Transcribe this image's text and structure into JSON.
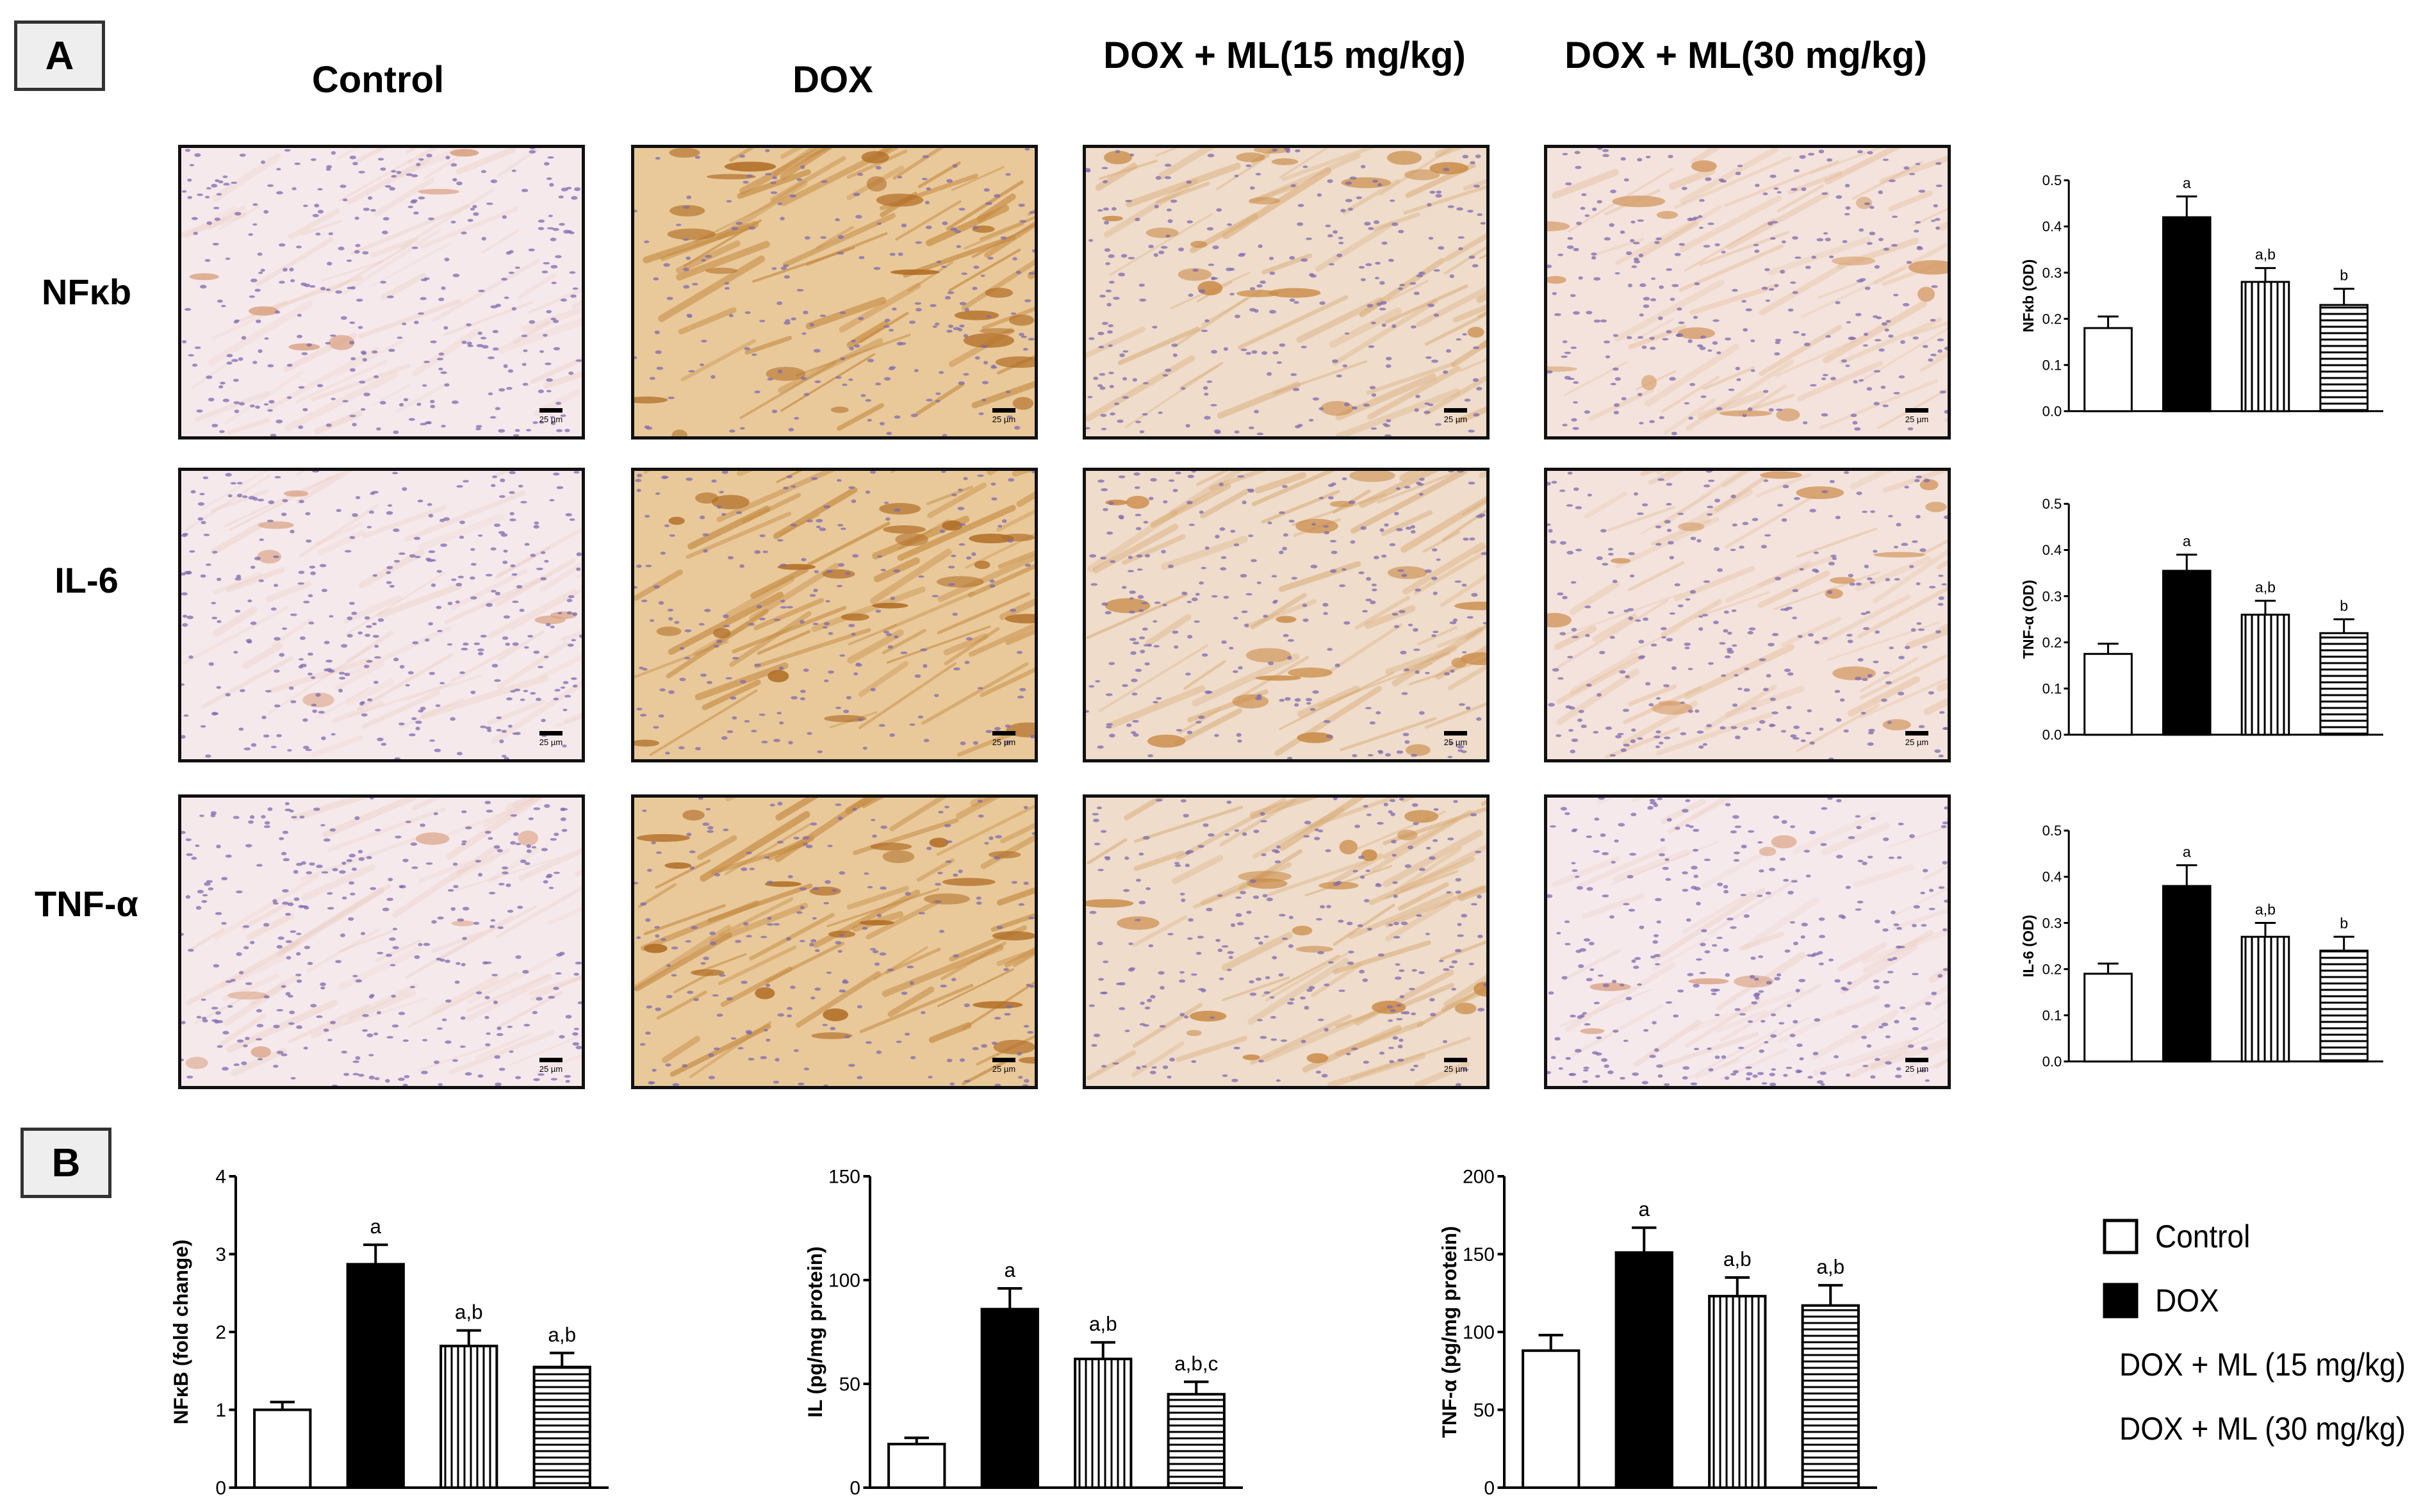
{
  "panels": {
    "a": "A",
    "b": "B"
  },
  "columns": [
    {
      "label": "Control"
    },
    {
      "label": "DOX"
    },
    {
      "label": "DOX + ML\n(15 mg/kg)"
    },
    {
      "label": "DOX + ML\n(30 mg/kg)"
    }
  ],
  "rows": [
    {
      "label": "NFκb"
    },
    {
      "label": "IL-6"
    },
    {
      "label": "TNF-α"
    }
  ],
  "scale_bar": "25 µm",
  "micrographs": [
    {
      "row": 0,
      "col": 0,
      "stain": "light"
    },
    {
      "row": 0,
      "col": 1,
      "stain": "heavy"
    },
    {
      "row": 0,
      "col": 2,
      "stain": "moderate"
    },
    {
      "row": 0,
      "col": 3,
      "stain": "mild"
    },
    {
      "row": 1,
      "col": 0,
      "stain": "light"
    },
    {
      "row": 1,
      "col": 1,
      "stain": "heavy"
    },
    {
      "row": 1,
      "col": 2,
      "stain": "moderate"
    },
    {
      "row": 1,
      "col": 3,
      "stain": "mild"
    },
    {
      "row": 2,
      "col": 0,
      "stain": "light"
    },
    {
      "row": 2,
      "col": 1,
      "stain": "heavy"
    },
    {
      "row": 2,
      "col": 2,
      "stain": "moderate"
    },
    {
      "row": 2,
      "col": 3,
      "stain": "light"
    }
  ],
  "legend": [
    {
      "label": "Control",
      "pattern": "empty"
    },
    {
      "label": "DOX",
      "pattern": "solid"
    },
    {
      "label": "DOX + ML (15 mg/kg)",
      "pattern": "vertical"
    },
    {
      "label": "DOX + ML (30 mg/kg)",
      "pattern": "horizontal"
    }
  ],
  "colors": {
    "ink": "#000000",
    "stain_brown": "#c8944a",
    "nuclei": "#7d6ab0",
    "tissue_pink": "#f3e2e6"
  },
  "chart_data": [
    {
      "type": "bar",
      "panel": "A",
      "ylabel": "NFκb (OD)",
      "ylim": [
        0,
        0.5
      ],
      "yticks": [
        "0.0",
        "0.1",
        "0.2",
        "0.3",
        "0.4",
        "0.5"
      ],
      "values": [
        0.18,
        0.42,
        0.28,
        0.23
      ],
      "errors": [
        0.025,
        0.045,
        0.03,
        0.035
      ],
      "annotations": [
        "",
        "a",
        "a,b",
        "b"
      ]
    },
    {
      "type": "bar",
      "panel": "A",
      "ylabel": "TNF-α (OD)",
      "ylim": [
        0,
        0.5
      ],
      "yticks": [
        "0.0",
        "0.1",
        "0.2",
        "0.3",
        "0.4",
        "0.5"
      ],
      "values": [
        0.175,
        0.355,
        0.26,
        0.22
      ],
      "errors": [
        0.022,
        0.035,
        0.03,
        0.03
      ],
      "annotations": [
        "",
        "a",
        "a,b",
        "b"
      ]
    },
    {
      "type": "bar",
      "panel": "A",
      "ylabel": "IL-6 (OD)",
      "ylim": [
        0,
        0.5
      ],
      "yticks": [
        "0.0",
        "0.1",
        "0.2",
        "0.3",
        "0.4",
        "0.5"
      ],
      "values": [
        0.19,
        0.38,
        0.27,
        0.24
      ],
      "errors": [
        0.022,
        0.045,
        0.03,
        0.03
      ],
      "annotations": [
        "",
        "a",
        "a,b",
        "b"
      ]
    },
    {
      "type": "bar",
      "panel": "B",
      "ylabel": "NFκB (fold change)",
      "ylim": [
        0,
        4
      ],
      "yticks": [
        "0",
        "1",
        "2",
        "3",
        "4"
      ],
      "values": [
        1.0,
        2.87,
        1.82,
        1.55
      ],
      "errors": [
        0.1,
        0.25,
        0.2,
        0.18
      ],
      "annotations": [
        "",
        "a",
        "a,b",
        "a,b"
      ]
    },
    {
      "type": "bar",
      "panel": "B",
      "ylabel": "IL (pg/mg protein)",
      "ylim": [
        0,
        150
      ],
      "yticks": [
        "0",
        "50",
        "100",
        "150"
      ],
      "values": [
        21,
        86,
        62,
        45
      ],
      "errors": [
        3,
        10,
        8,
        6
      ],
      "annotations": [
        "",
        "a",
        "a,b",
        "a,b,c"
      ]
    },
    {
      "type": "bar",
      "panel": "B",
      "ylabel": "TNF-α (pg/mg protein)",
      "ylim": [
        0,
        200
      ],
      "yticks": [
        "0",
        "50",
        "100",
        "150",
        "200"
      ],
      "values": [
        88,
        151,
        123,
        117
      ],
      "errors": [
        10,
        16,
        12,
        13
      ],
      "annotations": [
        "",
        "a",
        "a,b",
        "a,b"
      ]
    }
  ]
}
